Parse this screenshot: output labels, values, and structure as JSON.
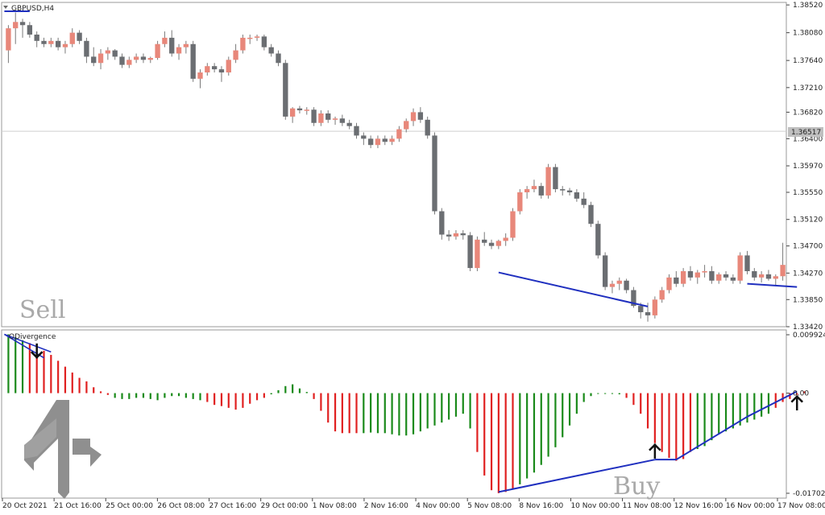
{
  "window": {
    "symbol_label": "GBPUSD,H4",
    "indicator_label": "ODivergence"
  },
  "annotations": {
    "sell_text": "Sell",
    "buy_text": "Buy"
  },
  "colors": {
    "bull_candle": "#e8877a",
    "bear_candle": "#6b6e72",
    "wick": "#7a7a7a",
    "hist_green": "#1a8a1a",
    "hist_red": "#e02020",
    "trendline": "#1f2fbf",
    "arrow": "#111111",
    "watermark": "#a9a9a9"
  },
  "current_price": {
    "label": "1.36517",
    "value": 1.36517
  },
  "chart_data": [
    {
      "type": "candlestick",
      "title": "GBPUSD,H4",
      "ylim": [
        1.3342,
        1.3856
      ],
      "yticks": [
        {
          "label": "1.38520",
          "value": 1.3852
        },
        {
          "label": "1.38080",
          "value": 1.3808
        },
        {
          "label": "1.37640",
          "value": 1.3764
        },
        {
          "label": "1.37210",
          "value": 1.3721
        },
        {
          "label": "1.36820",
          "value": 1.3682
        },
        {
          "label": "1.36400",
          "value": 1.364
        },
        {
          "label": "1.35970",
          "value": 1.3597
        },
        {
          "label": "1.35550",
          "value": 1.3555
        },
        {
          "label": "1.35120",
          "value": 1.3512
        },
        {
          "label": "1.34700",
          "value": 1.347
        },
        {
          "label": "1.34270",
          "value": 1.3427
        },
        {
          "label": "1.33850",
          "value": 1.3385
        },
        {
          "label": "1.33420",
          "value": 1.3342
        }
      ],
      "xticks": [
        "20 Oct 2021",
        "21 Oct 16:00",
        "25 Oct 00:00",
        "26 Oct 08:00",
        "27 Oct 16:00",
        "29 Oct 00:00",
        "1 Nov 08:00",
        "2 Nov 16:00",
        "4 Nov 00:00",
        "5 Nov 08:00",
        "8 Nov 16:00",
        "10 Nov 00:00",
        "11 Nov 08:00",
        "12 Nov 16:00",
        "16 Nov 00:00",
        "17 Nov 08:00"
      ],
      "candles_ohlc": [
        [
          1.378,
          1.382,
          1.376,
          1.3815
        ],
        [
          1.3815,
          1.384,
          1.379,
          1.3825
        ],
        [
          1.3825,
          1.383,
          1.38,
          1.382
        ],
        [
          1.382,
          1.3825,
          1.38,
          1.3805
        ],
        [
          1.3805,
          1.381,
          1.3785,
          1.3795
        ],
        [
          1.3795,
          1.38,
          1.3785,
          1.379
        ],
        [
          1.379,
          1.38,
          1.3785,
          1.3795
        ],
        [
          1.3795,
          1.38,
          1.378,
          1.3785
        ],
        [
          1.3785,
          1.3795,
          1.3775,
          1.379
        ],
        [
          1.379,
          1.3815,
          1.3785,
          1.3808
        ],
        [
          1.3808,
          1.3812,
          1.379,
          1.3795
        ],
        [
          1.3795,
          1.38,
          1.376,
          1.377
        ],
        [
          1.377,
          1.3785,
          1.3755,
          1.376
        ],
        [
          1.376,
          1.3782,
          1.375,
          1.3775
        ],
        [
          1.3775,
          1.3785,
          1.3765,
          1.378
        ],
        [
          1.378,
          1.3782,
          1.3765,
          1.377
        ],
        [
          1.377,
          1.3775,
          1.3752,
          1.3757
        ],
        [
          1.3757,
          1.377,
          1.3752,
          1.3765
        ],
        [
          1.3765,
          1.3775,
          1.376,
          1.377
        ],
        [
          1.377,
          1.3775,
          1.376,
          1.3765
        ],
        [
          1.3765,
          1.377,
          1.376,
          1.3768
        ],
        [
          1.3768,
          1.3795,
          1.3765,
          1.379
        ],
        [
          1.379,
          1.381,
          1.3785,
          1.38
        ],
        [
          1.38,
          1.3812,
          1.377,
          1.3775
        ],
        [
          1.3775,
          1.379,
          1.3765,
          1.3785
        ],
        [
          1.3785,
          1.3795,
          1.3775,
          1.379
        ],
        [
          1.379,
          1.3795,
          1.373,
          1.3735
        ],
        [
          1.3735,
          1.375,
          1.372,
          1.3745
        ],
        [
          1.3745,
          1.376,
          1.374,
          1.3755
        ],
        [
          1.3755,
          1.376,
          1.3745,
          1.375
        ],
        [
          1.375,
          1.3755,
          1.373,
          1.3745
        ],
        [
          1.3745,
          1.377,
          1.374,
          1.3765
        ],
        [
          1.3765,
          1.379,
          1.376,
          1.378
        ],
        [
          1.378,
          1.3805,
          1.3775,
          1.38
        ],
        [
          1.38,
          1.3805,
          1.379,
          1.38
        ],
        [
          1.38,
          1.3805,
          1.3795,
          1.3802
        ],
        [
          1.3802,
          1.3805,
          1.378,
          1.3785
        ],
        [
          1.3785,
          1.379,
          1.377,
          1.3775
        ],
        [
          1.3775,
          1.378,
          1.3755,
          1.376
        ],
        [
          1.376,
          1.3765,
          1.367,
          1.3675
        ],
        [
          1.3675,
          1.369,
          1.3665,
          1.3688
        ],
        [
          1.3688,
          1.3692,
          1.368,
          1.3685
        ],
        [
          1.3685,
          1.369,
          1.3678,
          1.3686
        ],
        [
          1.3686,
          1.369,
          1.366,
          1.3665
        ],
        [
          1.3665,
          1.3685,
          1.366,
          1.368
        ],
        [
          1.368,
          1.3685,
          1.3665,
          1.367
        ],
        [
          1.367,
          1.3675,
          1.3662,
          1.3672
        ],
        [
          1.3672,
          1.3678,
          1.366,
          1.3665
        ],
        [
          1.3665,
          1.367,
          1.3655,
          1.366
        ],
        [
          1.366,
          1.3665,
          1.364,
          1.3645
        ],
        [
          1.3645,
          1.365,
          1.363,
          1.364
        ],
        [
          1.364,
          1.3645,
          1.3625,
          1.363
        ],
        [
          1.363,
          1.3645,
          1.3625,
          1.364
        ],
        [
          1.364,
          1.3645,
          1.363,
          1.3635
        ],
        [
          1.3635,
          1.3645,
          1.363,
          1.364
        ],
        [
          1.364,
          1.366,
          1.3635,
          1.3655
        ],
        [
          1.3655,
          1.3672,
          1.365,
          1.3668
        ],
        [
          1.3668,
          1.3688,
          1.366,
          1.3682
        ],
        [
          1.3682,
          1.369,
          1.3665,
          1.367
        ],
        [
          1.367,
          1.3675,
          1.364,
          1.3645
        ],
        [
          1.3645,
          1.365,
          1.352,
          1.3525
        ],
        [
          1.3525,
          1.353,
          1.348,
          1.3488
        ],
        [
          1.3488,
          1.3495,
          1.3478,
          1.3485
        ],
        [
          1.3485,
          1.3495,
          1.348,
          1.349
        ],
        [
          1.349,
          1.3495,
          1.348,
          1.3487
        ],
        [
          1.3487,
          1.3492,
          1.343,
          1.3435
        ],
        [
          1.3435,
          1.3485,
          1.343,
          1.348
        ],
        [
          1.348,
          1.3492,
          1.347,
          1.3475
        ],
        [
          1.3475,
          1.348,
          1.3465,
          1.347
        ],
        [
          1.347,
          1.348,
          1.3465,
          1.3478
        ],
        [
          1.3478,
          1.349,
          1.347,
          1.3483
        ],
        [
          1.3483,
          1.353,
          1.3478,
          1.3525
        ],
        [
          1.3525,
          1.356,
          1.352,
          1.3555
        ],
        [
          1.3555,
          1.3565,
          1.3545,
          1.356
        ],
        [
          1.356,
          1.3575,
          1.3555,
          1.3565
        ],
        [
          1.3565,
          1.357,
          1.3545,
          1.355
        ],
        [
          1.355,
          1.36,
          1.3545,
          1.3595
        ],
        [
          1.3595,
          1.36,
          1.3555,
          1.356
        ],
        [
          1.356,
          1.3565,
          1.355,
          1.3558
        ],
        [
          1.3558,
          1.3562,
          1.355,
          1.3555
        ],
        [
          1.3555,
          1.356,
          1.354,
          1.3545
        ],
        [
          1.3545,
          1.3555,
          1.353,
          1.3535
        ],
        [
          1.3535,
          1.354,
          1.35,
          1.3505
        ],
        [
          1.3505,
          1.351,
          1.345,
          1.3455
        ],
        [
          1.3455,
          1.346,
          1.34,
          1.3405
        ],
        [
          1.3405,
          1.3415,
          1.3395,
          1.341
        ],
        [
          1.341,
          1.342,
          1.34,
          1.3415
        ],
        [
          1.3415,
          1.3418,
          1.3395,
          1.34
        ],
        [
          1.34,
          1.3405,
          1.3372,
          1.3375
        ],
        [
          1.3375,
          1.338,
          1.3355,
          1.3365
        ],
        [
          1.3365,
          1.338,
          1.335,
          1.336
        ],
        [
          1.336,
          1.339,
          1.3355,
          1.3385
        ],
        [
          1.3385,
          1.3405,
          1.338,
          1.34
        ],
        [
          1.34,
          1.3425,
          1.3395,
          1.342
        ],
        [
          1.342,
          1.343,
          1.3405,
          1.341
        ],
        [
          1.341,
          1.3435,
          1.3405,
          1.343
        ],
        [
          1.343,
          1.3438,
          1.3415,
          1.342
        ],
        [
          1.342,
          1.3432,
          1.341,
          1.3428
        ],
        [
          1.3428,
          1.344,
          1.342,
          1.343
        ],
        [
          1.343,
          1.3438,
          1.341,
          1.3415
        ],
        [
          1.3415,
          1.3428,
          1.341,
          1.3425
        ],
        [
          1.3425,
          1.343,
          1.3415,
          1.342
        ],
        [
          1.342,
          1.3425,
          1.341,
          1.3415
        ],
        [
          1.3415,
          1.346,
          1.341,
          1.3455
        ],
        [
          1.3455,
          1.3462,
          1.3425,
          1.343
        ],
        [
          1.343,
          1.3435,
          1.3415,
          1.342
        ],
        [
          1.342,
          1.343,
          1.3412,
          1.3425
        ],
        [
          1.3425,
          1.3432,
          1.3415,
          1.3418
        ],
        [
          1.3418,
          1.3425,
          1.3408,
          1.3422
        ],
        [
          1.3422,
          1.3475,
          1.3415,
          1.344
        ]
      ],
      "divergence_line": {
        "from_bar": 69,
        "from_price": 1.3428,
        "to_bar": 90,
        "to_price": 1.3374
      },
      "divergence_line_2": {
        "from_bar": 104,
        "from_price": 1.341,
        "to_bar": 111,
        "to_price": 1.3405
      },
      "top_left_marker": {
        "from_bar": 0,
        "to_bar": 3,
        "price": 1.3842
      }
    },
    {
      "type": "histogram",
      "title": "ODivergence",
      "ylim": [
        -0.01702,
        0.009924
      ],
      "yticks": [
        {
          "label": "0.009924",
          "value": 0.009924
        },
        {
          "label": "0.00",
          "value": 0.0
        },
        {
          "label": "-0.01702",
          "value": -0.01702
        }
      ],
      "values": [
        0.01,
        0.0095,
        0.009,
        0.0085,
        0.008,
        0.0072,
        0.0065,
        0.0055,
        0.0045,
        0.0035,
        0.0026,
        0.002,
        0.001,
        0.0003,
        -0.0003,
        -0.0008,
        -0.001,
        -0.001,
        -0.0008,
        -0.0008,
        -0.001,
        -0.0012,
        -0.0008,
        -0.0005,
        -0.0005,
        -0.0008,
        -0.001,
        -0.0012,
        -0.0015,
        -0.002,
        -0.0022,
        -0.0025,
        -0.0028,
        -0.0025,
        -0.0018,
        -0.0012,
        -0.0008,
        -0.0002,
        0.0005,
        0.0012,
        0.0015,
        0.0008,
        0.0002,
        -0.001,
        -0.003,
        -0.005,
        -0.0065,
        -0.0068,
        -0.0068,
        -0.0068,
        -0.0068,
        -0.0067,
        -0.0068,
        -0.0068,
        -0.007,
        -0.0072,
        -0.0072,
        -0.007,
        -0.0065,
        -0.006,
        -0.0055,
        -0.005,
        -0.0045,
        -0.004,
        -0.0035,
        -0.006,
        -0.01,
        -0.014,
        -0.0165,
        -0.017,
        -0.0168,
        -0.0162,
        -0.0155,
        -0.0145,
        -0.0135,
        -0.0122,
        -0.0108,
        -0.0092,
        -0.0075,
        -0.0055,
        -0.0035,
        -0.0015,
        -0.0005,
        0.0,
        0.0,
        0.0,
        -0.0002,
        -0.0008,
        -0.002,
        -0.0035,
        -0.006,
        -0.0085,
        -0.01,
        -0.011,
        -0.0115,
        -0.0112,
        -0.01,
        -0.0095,
        -0.009,
        -0.008,
        -0.007,
        -0.0065,
        -0.006,
        -0.0055,
        -0.005,
        -0.0045,
        -0.004,
        -0.0035,
        -0.0025,
        -0.0015,
        -0.001,
        -0.0003,
        0.0003
      ],
      "colors_by_bar": "gggrrrrrrrrrrrrgggggggggggggrrrrrrrrrggggggrrrrrrrggggggggggggggggrrrrrrgggggggggggggggrrrrrrrrrrgggggggggggrrrrrrrrrrggggggg",
      "divergence_lines": [
        {
          "from_bar": 69,
          "from_value": -0.0168,
          "to_bar": 91,
          "to_value": -0.0113
        },
        {
          "from_bar": 91,
          "from_value": -0.0113,
          "to_bar": 94,
          "to_value": -0.0113
        },
        {
          "from_bar": 94,
          "from_value": -0.0113,
          "to_bar": 104,
          "to_value": -0.004
        },
        {
          "from_bar": 104,
          "from_value": -0.004,
          "to_bar": 111,
          "to_value": 0.0003
        }
      ],
      "top_left_lines": [
        {
          "from_bar": 0,
          "from_value": 0.01,
          "to_bar": 5,
          "to_value": 0.006
        },
        {
          "from_bar": 0,
          "from_value": 0.01,
          "to_bar": 6,
          "to_value": 0.007
        }
      ],
      "arrows": [
        {
          "bar": 4,
          "direction": "down"
        },
        {
          "bar": 91,
          "direction": "up"
        },
        {
          "bar": 111,
          "direction": "up"
        }
      ]
    }
  ]
}
